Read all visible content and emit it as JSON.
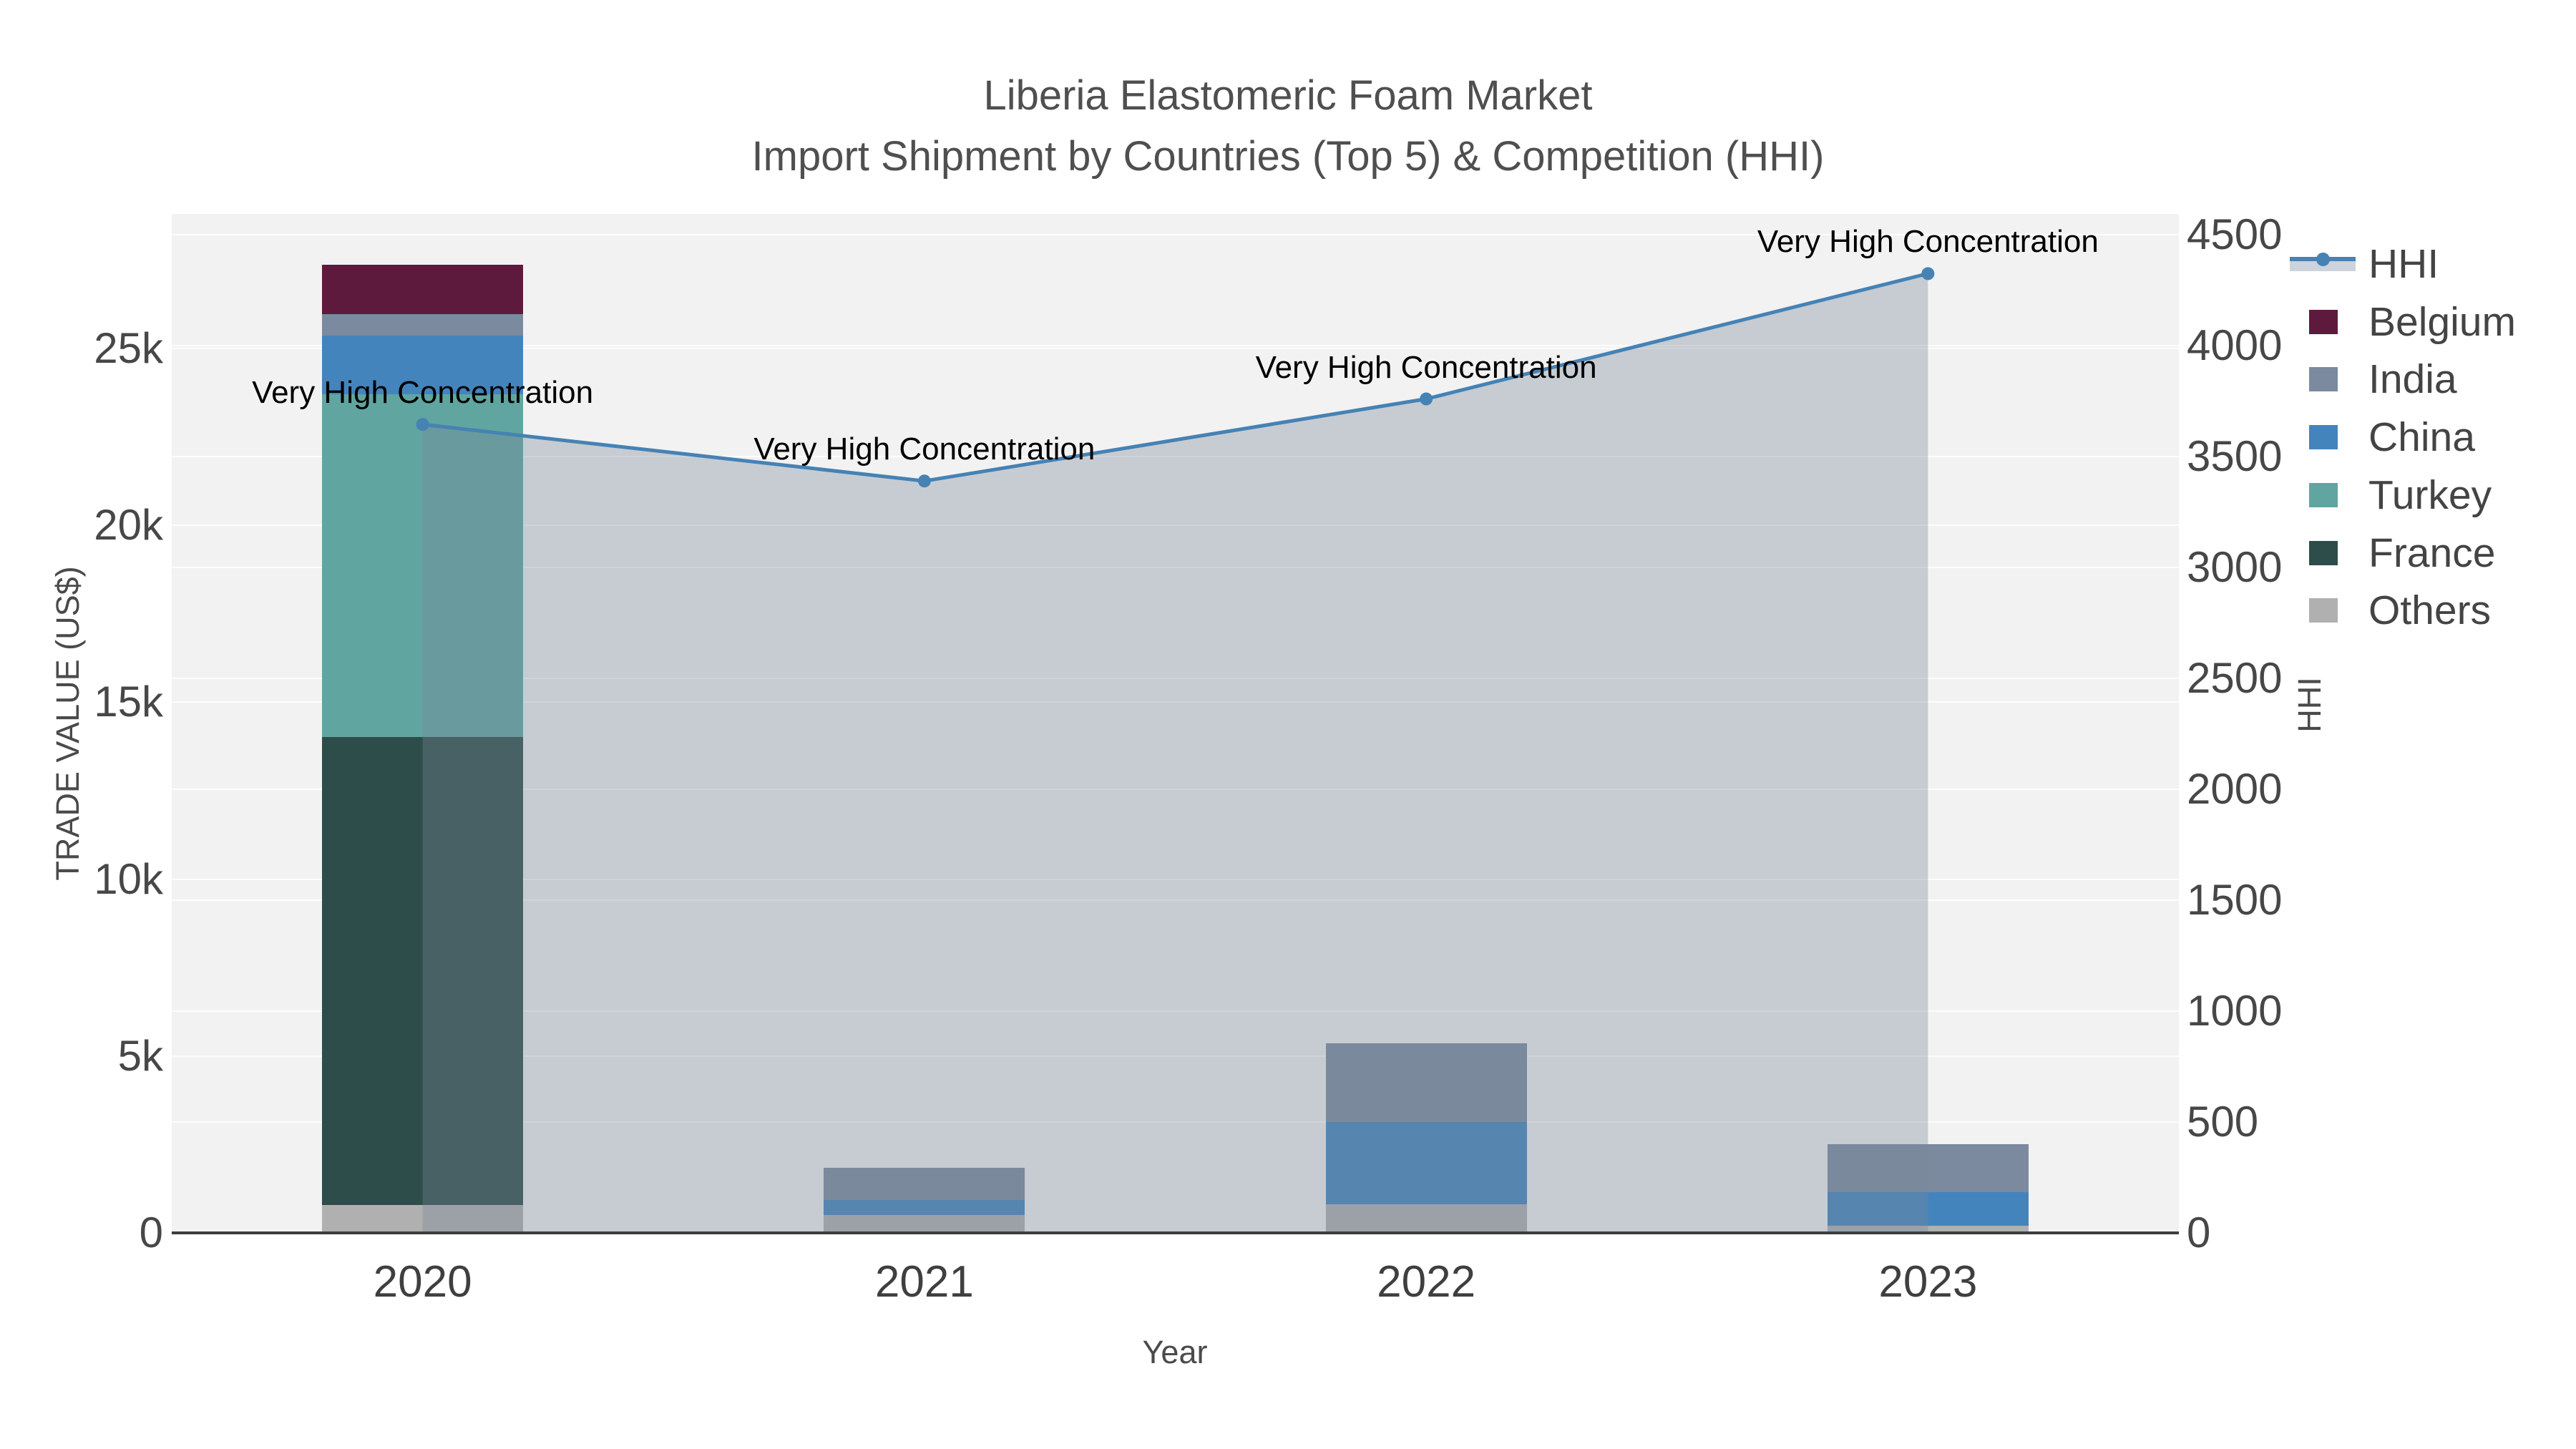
{
  "title": {
    "line1": "Liberia Elastomeric Foam Market",
    "line2": "Import Shipment by Countries (Top 5) & Competition (HHI)"
  },
  "chart_data": {
    "type": "bar",
    "subtype": "stacked-bars-with-secondary-axis-line",
    "categories": [
      "2020",
      "2021",
      "2022",
      "2023"
    ],
    "series": [
      {
        "name": "Others",
        "color": "#b0b0b0",
        "values": [
          790,
          510,
          810,
          200
        ]
      },
      {
        "name": "France",
        "color": "#2d4d4a",
        "values": [
          13220,
          0,
          0,
          0
        ]
      },
      {
        "name": "Turkey",
        "color": "#61a5a1",
        "values": [
          9690,
          0,
          0,
          0
        ]
      },
      {
        "name": "China",
        "color": "#4484bd",
        "values": [
          1660,
          420,
          2330,
          950
        ]
      },
      {
        "name": "India",
        "color": "#7b8a9e",
        "values": [
          610,
          910,
          2220,
          1360
        ]
      },
      {
        "name": "Belgium",
        "color": "#5e1a3c",
        "values": [
          1400,
          0,
          0,
          0
        ]
      }
    ],
    "line_series": {
      "name": "HHI",
      "color": "#4682b4",
      "area_fill": "rgba(119,136,153,0.35)",
      "axis": "right",
      "values": [
        3645,
        3390,
        3760,
        4325
      ],
      "point_annotation": "Very High Concentration"
    },
    "title": "Liberia Elastomeric Foam Market — Import Shipment by Countries (Top 5) & Competition (HHI)",
    "xlabel": "Year",
    "ylabel_left": "TRADE VALUE (US$)",
    "ylabel_right": "HHI",
    "ylim_left": [
      0,
      28800
    ],
    "ylim_right": [
      0,
      4594
    ],
    "grid": "on",
    "legend_position": "right"
  },
  "axes": {
    "y_left_ticks": [
      {
        "label": "0",
        "value": 0
      },
      {
        "label": "5k",
        "value": 5000
      },
      {
        "label": "10k",
        "value": 10000
      },
      {
        "label": "15k",
        "value": 15000
      },
      {
        "label": "20k",
        "value": 20000
      },
      {
        "label": "25k",
        "value": 25000
      }
    ],
    "y_right_ticks": [
      {
        "label": "0",
        "value": 0
      },
      {
        "label": "500",
        "value": 500
      },
      {
        "label": "1000",
        "value": 1000
      },
      {
        "label": "1500",
        "value": 1500
      },
      {
        "label": "2000",
        "value": 2000
      },
      {
        "label": "2500",
        "value": 2500
      },
      {
        "label": "3000",
        "value": 3000
      },
      {
        "label": "3500",
        "value": 3500
      },
      {
        "label": "4000",
        "value": 4000
      },
      {
        "label": "4500",
        "value": 4500
      }
    ],
    "x_ticks": [
      "2020",
      "2021",
      "2022",
      "2023"
    ]
  },
  "legend": {
    "items": [
      {
        "name": "HHI",
        "type": "line"
      },
      {
        "name": "Belgium",
        "type": "swatch",
        "color": "#5e1a3c"
      },
      {
        "name": "India",
        "type": "swatch",
        "color": "#7b8a9e"
      },
      {
        "name": "China",
        "type": "swatch",
        "color": "#4484bd"
      },
      {
        "name": "Turkey",
        "type": "swatch",
        "color": "#61a5a1"
      },
      {
        "name": "France",
        "type": "swatch",
        "color": "#2d4d4a"
      },
      {
        "name": "Others",
        "type": "swatch",
        "color": "#b0b0b0"
      }
    ]
  },
  "colors": {
    "plot_background": "#f2f2f2",
    "page_background": "#ffffff",
    "gridline": "rgba(255,255,255,0.8)",
    "axis_line": "#3d3d3d",
    "title_text": "#4f4f4f",
    "tick_text": "#474747",
    "annotation_text": "#000000"
  }
}
